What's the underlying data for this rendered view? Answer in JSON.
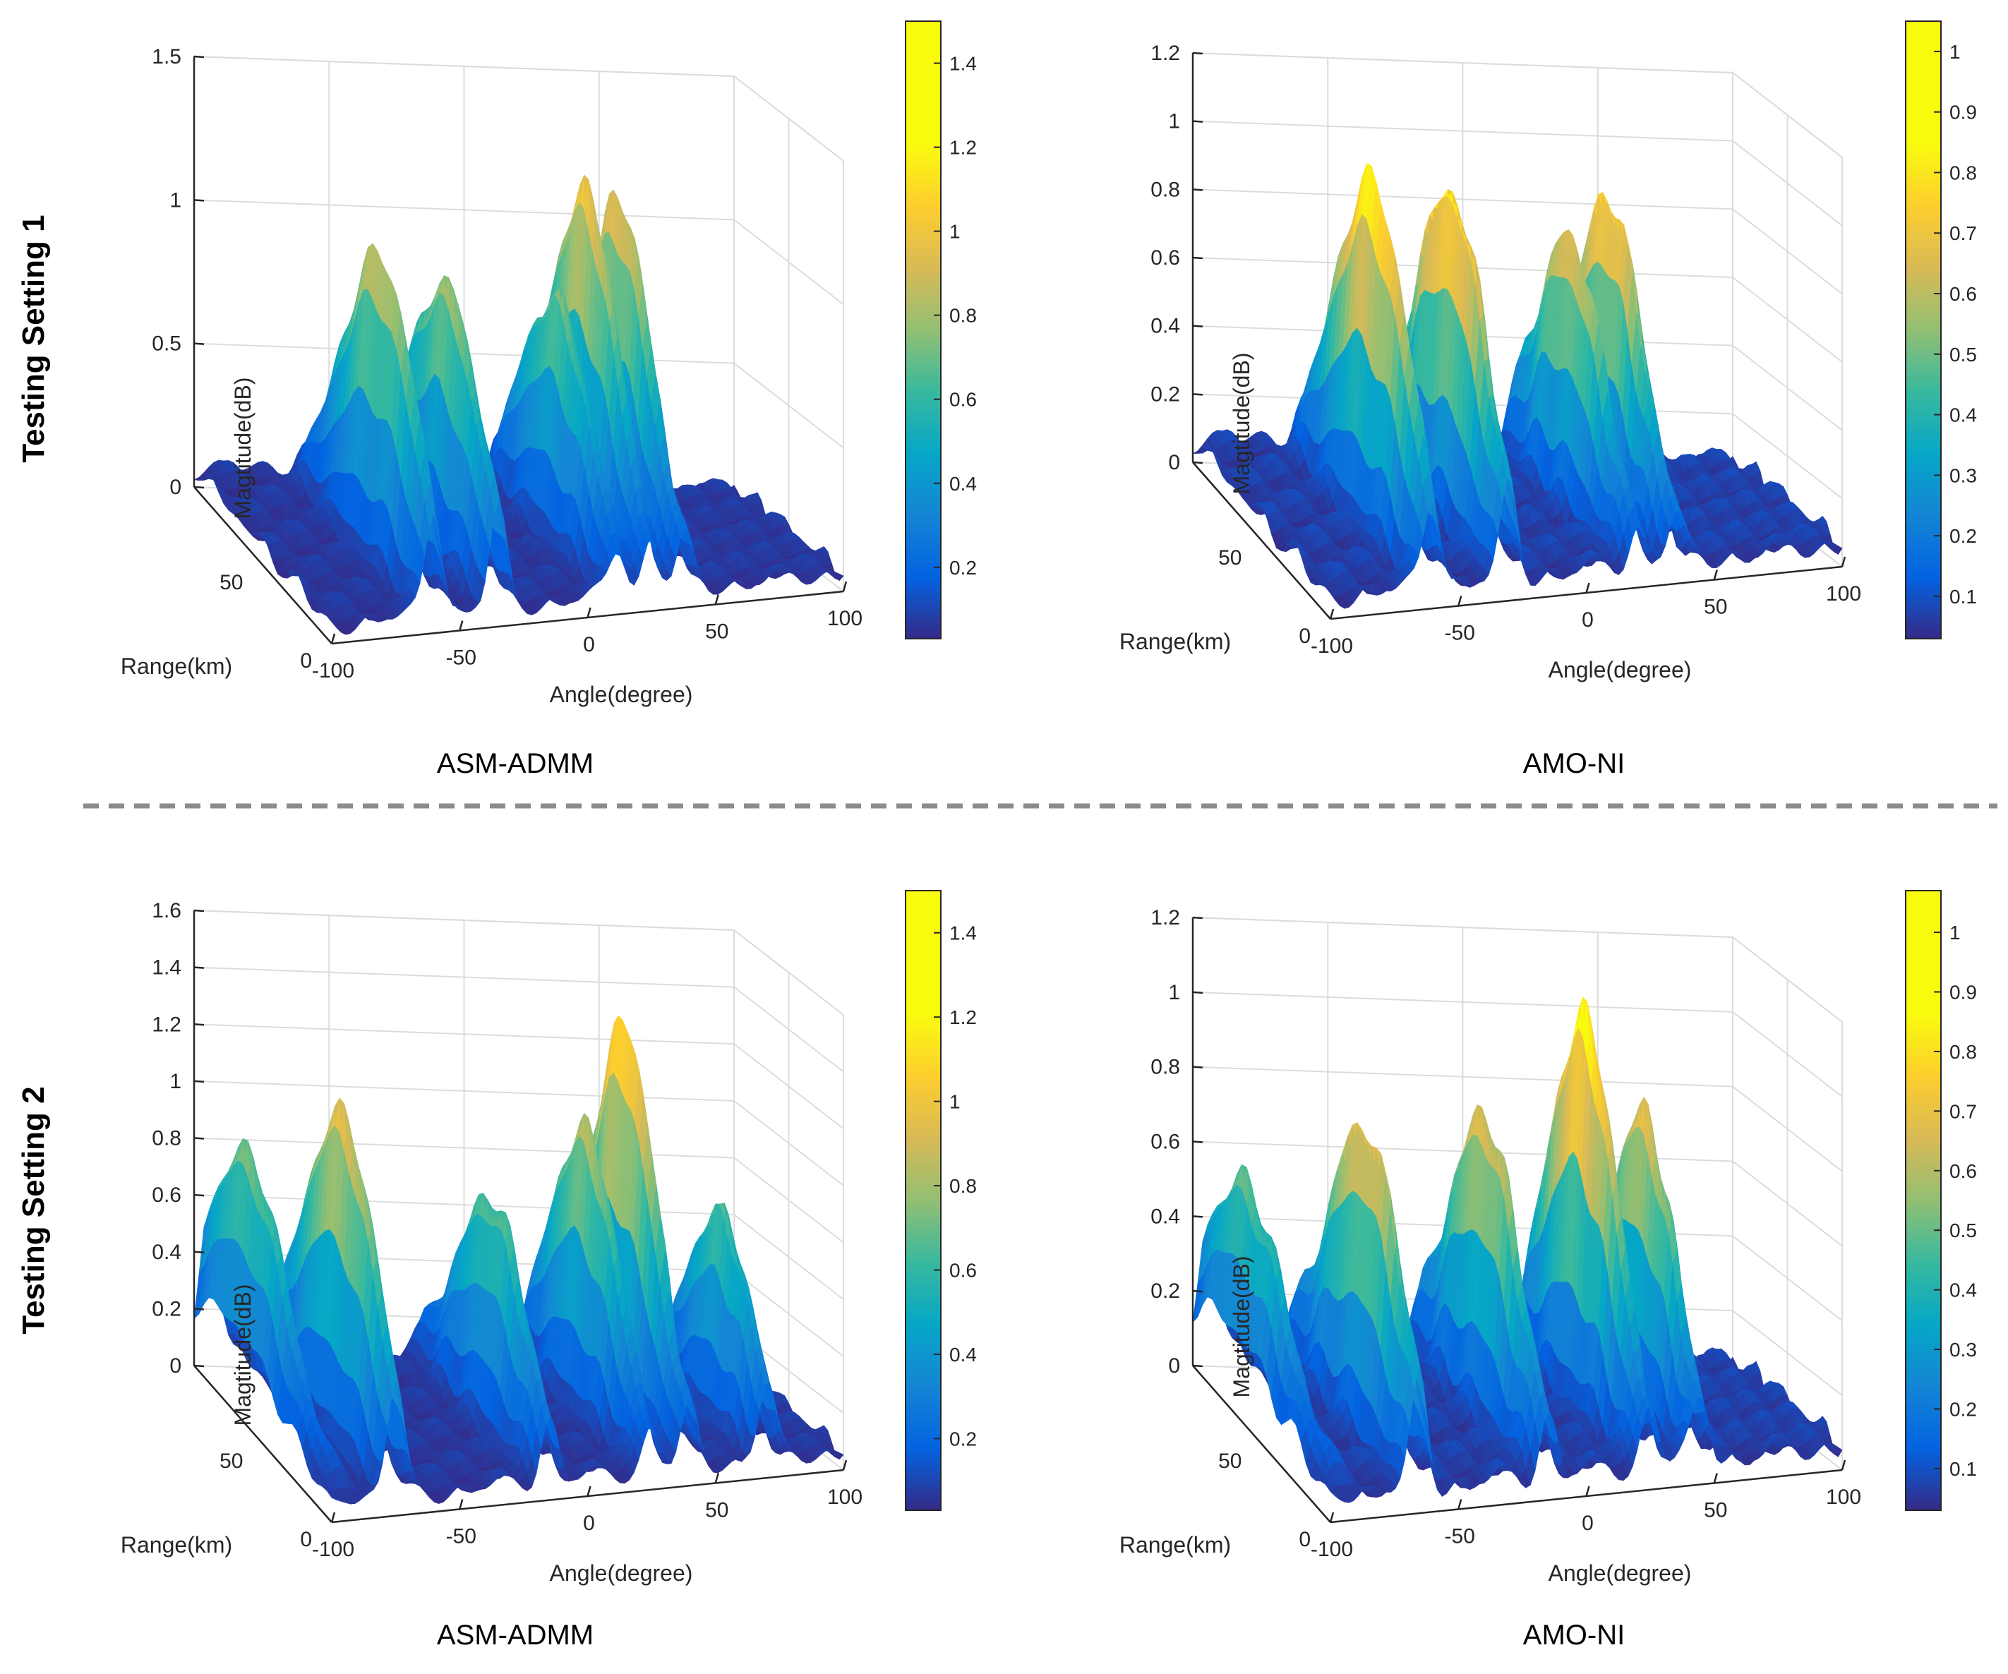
{
  "row_labels": [
    "Testing Setting 1",
    "Testing Setting 2"
  ],
  "colors": {
    "divider": "#8c8c8c",
    "axis": "#262626",
    "grid": "#dcdcdc"
  },
  "colormap": "parula",
  "chart_data": [
    {
      "type": "surface3d",
      "method": "ASM-ADMM",
      "setting": "Testing Setting 1",
      "xlabel": "Angle(degree)",
      "ylabel": "Range(km)",
      "zlabel": "Magtitude(dB)",
      "xlim": [
        -100,
        100
      ],
      "ylim": [
        0,
        100
      ],
      "zlim": [
        0,
        1.5
      ],
      "xticks": [
        "-100",
        "-50",
        "0",
        "50",
        "100"
      ],
      "yticks": [
        "0",
        "50"
      ],
      "zticks": [
        "0",
        "0.5",
        "1",
        "1.5"
      ],
      "colorbar": {
        "min": 0.03,
        "max": 1.5,
        "ticks": [
          "0.2",
          "0.4",
          "0.6",
          "0.8",
          "1",
          "1.2",
          "1.4"
        ]
      },
      "peaks": [
        {
          "angle": -60,
          "range": 40,
          "magnitude": 1.05
        },
        {
          "angle": -35,
          "range": 40,
          "magnitude": 0.95
        },
        {
          "angle": 12,
          "range": 50,
          "magnitude": 0.85
        },
        {
          "angle": 25,
          "range": 55,
          "magnitude": 1.2
        },
        {
          "angle": 38,
          "range": 55,
          "magnitude": 1.15
        }
      ]
    },
    {
      "type": "surface3d",
      "method": "AMO-NI",
      "setting": "Testing Setting 1",
      "xlabel": "Angle(degree)",
      "ylabel": "Range(km)",
      "zlabel": "Magtitude(dB)",
      "xlim": [
        -100,
        100
      ],
      "ylim": [
        0,
        100
      ],
      "zlim": [
        0,
        1.2
      ],
      "xticks": [
        "-100",
        "-50",
        "0",
        "50",
        "100"
      ],
      "yticks": [
        "0",
        "50"
      ],
      "zticks": [
        "0",
        "0.2",
        "0.4",
        "0.6",
        "0.8",
        "1",
        "1.2"
      ],
      "colorbar": {
        "min": 0.03,
        "max": 1.05,
        "ticks": [
          "0.1",
          "0.2",
          "0.3",
          "0.4",
          "0.5",
          "0.6",
          "0.7",
          "0.8",
          "0.9",
          "1"
        ]
      },
      "peaks": [
        {
          "angle": -60,
          "range": 45,
          "magnitude": 1.0
        },
        {
          "angle": -30,
          "range": 45,
          "magnitude": 0.98
        },
        {
          "angle": 20,
          "range": 55,
          "magnitude": 0.78
        },
        {
          "angle": 35,
          "range": 55,
          "magnitude": 0.9
        }
      ]
    },
    {
      "type": "surface3d",
      "method": "ASM-ADMM",
      "setting": "Testing Setting 2",
      "xlabel": "Angle(degree)",
      "ylabel": "Range(km)",
      "zlabel": "Magtitude(dB)",
      "xlim": [
        -100,
        100
      ],
      "ylim": [
        0,
        100
      ],
      "zlim": [
        0,
        1.6
      ],
      "xticks": [
        "-100",
        "-50",
        "0",
        "50",
        "100"
      ],
      "yticks": [
        "0",
        "50"
      ],
      "zticks": [
        "0",
        "0.2",
        "0.4",
        "0.6",
        "0.8",
        "1",
        "1.2",
        "1.4",
        "1.6"
      ],
      "colorbar": {
        "min": 0.03,
        "max": 1.5,
        "ticks": [
          "0.2",
          "0.4",
          "0.6",
          "0.8",
          "1",
          "1.2",
          "1.4"
        ]
      },
      "peaks": [
        {
          "angle": -95,
          "range": 70,
          "magnitude": 0.85
        },
        {
          "angle": -75,
          "range": 40,
          "magnitude": 1.15
        },
        {
          "angle": -15,
          "range": 45,
          "magnitude": 0.8
        },
        {
          "angle": 25,
          "range": 55,
          "magnitude": 1.0
        },
        {
          "angle": 40,
          "range": 55,
          "magnitude": 1.35
        },
        {
          "angle": 70,
          "range": 40,
          "magnitude": 0.75
        }
      ]
    },
    {
      "type": "surface3d",
      "method": "AMO-NI",
      "setting": "Testing Setting 2",
      "xlabel": "Angle(degree)",
      "ylabel": "Range(km)",
      "zlabel": "Magtitude(dB)",
      "xlim": [
        -100,
        100
      ],
      "ylim": [
        0,
        100
      ],
      "zlim": [
        0,
        1.2
      ],
      "xticks": [
        "-100",
        "-50",
        "0",
        "50",
        "100"
      ],
      "yticks": [
        "0",
        "50"
      ],
      "zticks": [
        "0",
        "0.2",
        "0.4",
        "0.6",
        "0.8",
        "1",
        "1.2"
      ],
      "colorbar": {
        "min": 0.03,
        "max": 1.07,
        "ticks": [
          "0.1",
          "0.2",
          "0.3",
          "0.4",
          "0.5",
          "0.6",
          "0.7",
          "0.8",
          "0.9",
          "1"
        ]
      },
      "peaks": [
        {
          "angle": -95,
          "range": 70,
          "magnitude": 0.55
        },
        {
          "angle": -65,
          "range": 40,
          "magnitude": 0.82
        },
        {
          "angle": -15,
          "range": 50,
          "magnitude": 0.8
        },
        {
          "angle": 25,
          "range": 55,
          "magnitude": 1.05
        },
        {
          "angle": 45,
          "range": 50,
          "magnitude": 0.8
        }
      ]
    }
  ]
}
